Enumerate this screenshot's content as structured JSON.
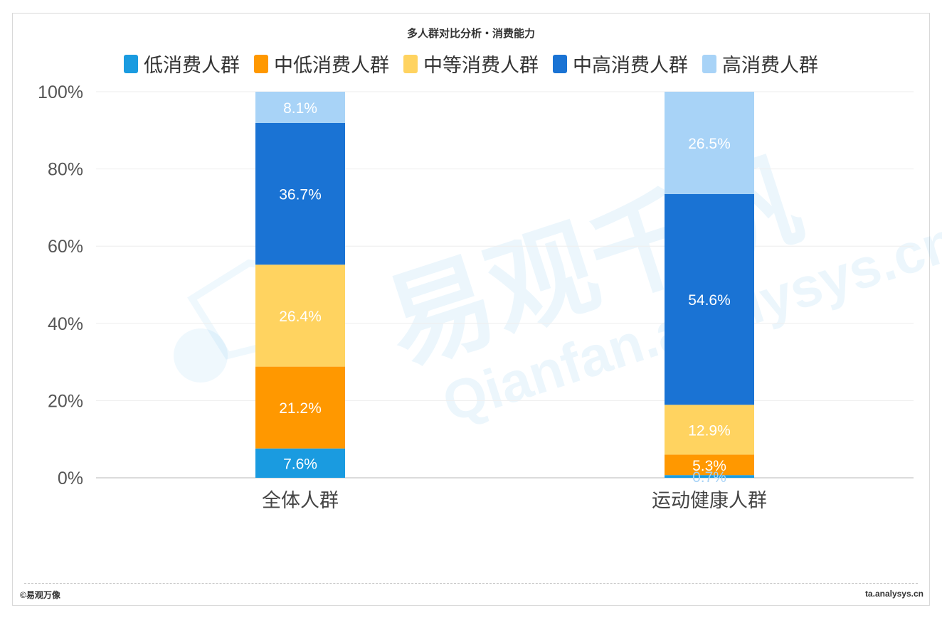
{
  "footer": {
    "left": "©易观万像",
    "right": "ta.analysys.cn"
  },
  "watermark": {
    "main": "易观千帆",
    "sub": "Qianfan.analysys.cn"
  },
  "chart_data": {
    "type": "bar",
    "stacked": true,
    "title": "多人群对比分析・消费能力",
    "categories": [
      "全体人群",
      "运动健康人群"
    ],
    "ylim": [
      0,
      100
    ],
    "yticks": [
      "0%",
      "20%",
      "40%",
      "60%",
      "80%",
      "100%"
    ],
    "ytick_values": [
      0,
      20,
      40,
      60,
      80,
      100
    ],
    "grid": true,
    "legend_position": "top",
    "series": [
      {
        "name": "低消费人群",
        "color": "#1a9be0",
        "values": [
          7.6,
          0.7
        ],
        "labels": [
          "7.6%",
          "0.7%"
        ]
      },
      {
        "name": "中低消费人群",
        "color": "#ff9800",
        "values": [
          21.2,
          5.3
        ],
        "labels": [
          "21.2%",
          "5.3%"
        ]
      },
      {
        "name": "中等消费人群",
        "color": "#ffd360",
        "values": [
          26.4,
          12.9
        ],
        "labels": [
          "26.4%",
          "12.9%"
        ]
      },
      {
        "name": "中高消费人群",
        "color": "#1a73d4",
        "values": [
          36.7,
          54.6
        ],
        "labels": [
          "36.7%",
          "54.6%"
        ]
      },
      {
        "name": "高消费人群",
        "color": "#a8d3f7",
        "values": [
          8.1,
          26.5
        ],
        "labels": [
          "8.1%",
          "26.5%"
        ]
      }
    ]
  }
}
